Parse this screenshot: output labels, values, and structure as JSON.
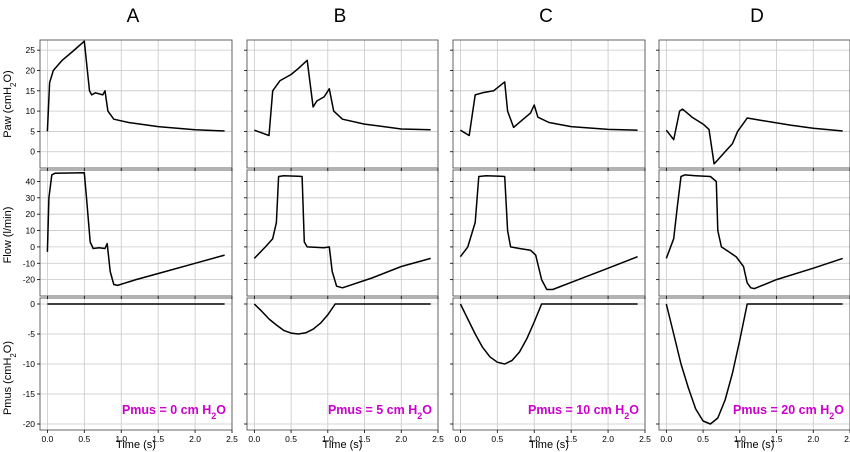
{
  "chart_data": {
    "type": "line",
    "columns": [
      "A",
      "B",
      "C",
      "D"
    ],
    "row_labels": [
      "Paw (cmH₂O)",
      "Flow (l/min)",
      "Pmus (cmH₂O)"
    ],
    "xlabel": "Time (s)",
    "x_ticks": [
      "0.0",
      "0.5",
      "1.0",
      "1.5",
      "2.0",
      "2.5"
    ],
    "xlim": [
      -0.1,
      2.5
    ],
    "rows": [
      {
        "name": "Paw",
        "ylim": [
          -4,
          27.5
        ],
        "y_ticks": [
          0,
          5,
          10,
          15,
          20,
          25
        ]
      },
      {
        "name": "Flow",
        "ylim": [
          -30,
          47
        ],
        "y_ticks": [
          -20,
          -10,
          0,
          10,
          20,
          30,
          40
        ]
      },
      {
        "name": "Pmus",
        "ylim": [
          -21,
          1
        ],
        "y_ticks": [
          0,
          -5,
          -10,
          -15,
          -20
        ]
      }
    ],
    "annotations": [
      "Pmus = 0 cm H₂O",
      "Pmus = 5 cm H₂O",
      "Pmus = 10 cm H₂O",
      "Pmus = 20 cm H₂O"
    ],
    "annotation_color": "#cc00cc",
    "line_color": "#000000",
    "series": [
      {
        "column": "A",
        "paw": [
          [
            0,
            5
          ],
          [
            0.03,
            17
          ],
          [
            0.08,
            20
          ],
          [
            0.2,
            22.5
          ],
          [
            0.35,
            24.8
          ],
          [
            0.5,
            27.2
          ],
          [
            0.57,
            15
          ],
          [
            0.6,
            14
          ],
          [
            0.65,
            14.5
          ],
          [
            0.75,
            14
          ],
          [
            0.78,
            15
          ],
          [
            0.82,
            10
          ],
          [
            0.9,
            8
          ],
          [
            1.1,
            7.2
          ],
          [
            1.5,
            6.2
          ],
          [
            2.0,
            5.4
          ],
          [
            2.4,
            5.1
          ]
        ],
        "flow": [
          [
            0,
            -3
          ],
          [
            0.02,
            30
          ],
          [
            0.06,
            44
          ],
          [
            0.1,
            45
          ],
          [
            0.5,
            45.3
          ],
          [
            0.53,
            30
          ],
          [
            0.58,
            3
          ],
          [
            0.62,
            -1
          ],
          [
            0.7,
            -0.5
          ],
          [
            0.78,
            -1
          ],
          [
            0.81,
            2
          ],
          [
            0.85,
            -15
          ],
          [
            0.9,
            -23
          ],
          [
            0.95,
            -23.5
          ],
          [
            1.2,
            -20
          ],
          [
            1.6,
            -15
          ],
          [
            2.0,
            -10
          ],
          [
            2.4,
            -5
          ]
        ],
        "pmus": [
          [
            0,
            0
          ],
          [
            2.4,
            0
          ]
        ]
      },
      {
        "column": "B",
        "paw": [
          [
            0,
            5.3
          ],
          [
            0.2,
            4
          ],
          [
            0.25,
            15
          ],
          [
            0.35,
            17.5
          ],
          [
            0.5,
            19
          ],
          [
            0.6,
            20.5
          ],
          [
            0.72,
            22.5
          ],
          [
            0.8,
            11
          ],
          [
            0.85,
            12.5
          ],
          [
            0.95,
            13.5
          ],
          [
            1.02,
            15.5
          ],
          [
            1.08,
            10
          ],
          [
            1.2,
            8
          ],
          [
            1.5,
            6.8
          ],
          [
            2.0,
            5.6
          ],
          [
            2.4,
            5.4
          ]
        ],
        "flow": [
          [
            0,
            -7
          ],
          [
            0.15,
            0
          ],
          [
            0.25,
            5
          ],
          [
            0.3,
            15
          ],
          [
            0.33,
            43
          ],
          [
            0.4,
            43.5
          ],
          [
            0.6,
            43.2
          ],
          [
            0.65,
            43
          ],
          [
            0.68,
            3
          ],
          [
            0.72,
            0
          ],
          [
            0.95,
            -0.5
          ],
          [
            1.02,
            0
          ],
          [
            1.06,
            -15
          ],
          [
            1.12,
            -24
          ],
          [
            1.2,
            -25
          ],
          [
            1.6,
            -19
          ],
          [
            2.0,
            -12
          ],
          [
            2.4,
            -7
          ]
        ],
        "pmus": [
          [
            0,
            0
          ],
          [
            0.1,
            -1.2
          ],
          [
            0.2,
            -2.5
          ],
          [
            0.3,
            -3.5
          ],
          [
            0.4,
            -4.4
          ],
          [
            0.5,
            -4.85
          ],
          [
            0.6,
            -5
          ],
          [
            0.7,
            -4.8
          ],
          [
            0.8,
            -4.2
          ],
          [
            0.9,
            -3.2
          ],
          [
            1.0,
            -1.8
          ],
          [
            1.1,
            0
          ],
          [
            2.4,
            0
          ]
        ]
      },
      {
        "column": "C",
        "paw": [
          [
            0,
            5.3
          ],
          [
            0.12,
            4
          ],
          [
            0.2,
            14
          ],
          [
            0.3,
            14.5
          ],
          [
            0.45,
            15
          ],
          [
            0.6,
            17.2
          ],
          [
            0.64,
            10
          ],
          [
            0.72,
            6
          ],
          [
            0.85,
            8
          ],
          [
            0.95,
            9.5
          ],
          [
            1.0,
            11.5
          ],
          [
            1.05,
            8.5
          ],
          [
            1.2,
            7.2
          ],
          [
            1.5,
            6.2
          ],
          [
            2.0,
            5.5
          ],
          [
            2.4,
            5.3
          ]
        ],
        "flow": [
          [
            0,
            -6
          ],
          [
            0.1,
            0
          ],
          [
            0.2,
            15
          ],
          [
            0.25,
            43
          ],
          [
            0.35,
            43.5
          ],
          [
            0.55,
            43.2
          ],
          [
            0.6,
            43
          ],
          [
            0.64,
            10
          ],
          [
            0.68,
            0
          ],
          [
            0.8,
            -1
          ],
          [
            0.95,
            -2
          ],
          [
            1.02,
            -5
          ],
          [
            1.1,
            -20
          ],
          [
            1.17,
            -26
          ],
          [
            1.25,
            -26
          ],
          [
            1.6,
            -20
          ],
          [
            2.0,
            -13
          ],
          [
            2.4,
            -6
          ]
        ],
        "pmus": [
          [
            0,
            0
          ],
          [
            0.1,
            -2.5
          ],
          [
            0.2,
            -5
          ],
          [
            0.3,
            -7.2
          ],
          [
            0.4,
            -8.8
          ],
          [
            0.5,
            -9.7
          ],
          [
            0.6,
            -10
          ],
          [
            0.7,
            -9.4
          ],
          [
            0.8,
            -8
          ],
          [
            0.9,
            -5.8
          ],
          [
            1.0,
            -3
          ],
          [
            1.1,
            0
          ],
          [
            2.4,
            0
          ]
        ]
      },
      {
        "column": "D",
        "paw": [
          [
            0,
            5.3
          ],
          [
            0.1,
            3
          ],
          [
            0.18,
            10
          ],
          [
            0.22,
            10.5
          ],
          [
            0.35,
            8.5
          ],
          [
            0.5,
            6.8
          ],
          [
            0.58,
            5.5
          ],
          [
            0.65,
            -3
          ],
          [
            0.7,
            -2
          ],
          [
            0.8,
            0
          ],
          [
            0.9,
            2
          ],
          [
            0.97,
            5
          ],
          [
            1.05,
            7
          ],
          [
            1.1,
            8.3
          ],
          [
            1.3,
            7.7
          ],
          [
            1.7,
            6.5
          ],
          [
            2.0,
            5.8
          ],
          [
            2.4,
            5.1
          ]
        ],
        "flow": [
          [
            0,
            -7
          ],
          [
            0.1,
            5
          ],
          [
            0.15,
            25
          ],
          [
            0.2,
            43
          ],
          [
            0.25,
            44
          ],
          [
            0.4,
            43.5
          ],
          [
            0.6,
            43
          ],
          [
            0.68,
            40
          ],
          [
            0.7,
            10
          ],
          [
            0.75,
            0
          ],
          [
            0.85,
            -3
          ],
          [
            0.95,
            -6
          ],
          [
            1.05,
            -12
          ],
          [
            1.1,
            -22
          ],
          [
            1.15,
            -25
          ],
          [
            1.2,
            -25.5
          ],
          [
            1.5,
            -20
          ],
          [
            2.0,
            -13
          ],
          [
            2.4,
            -7
          ]
        ],
        "pmus": [
          [
            0,
            0
          ],
          [
            0.1,
            -5
          ],
          [
            0.2,
            -10
          ],
          [
            0.3,
            -14
          ],
          [
            0.4,
            -17.5
          ],
          [
            0.5,
            -19.5
          ],
          [
            0.6,
            -20
          ],
          [
            0.7,
            -19
          ],
          [
            0.8,
            -16
          ],
          [
            0.9,
            -11.5
          ],
          [
            1.0,
            -6
          ],
          [
            1.1,
            0
          ],
          [
            2.4,
            0
          ]
        ]
      }
    ]
  }
}
